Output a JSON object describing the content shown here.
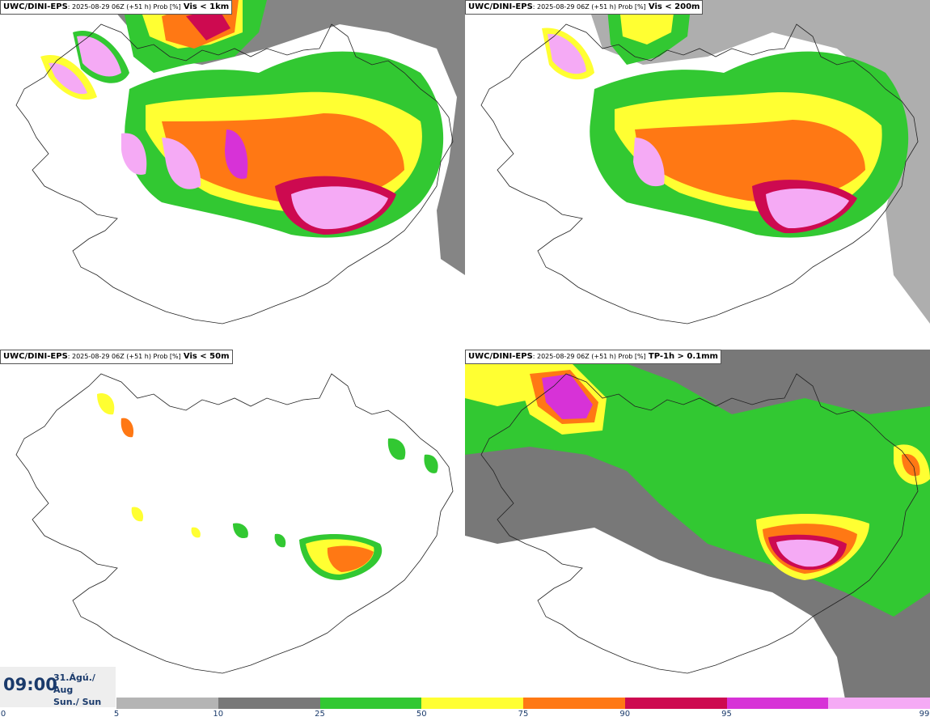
{
  "panels": [
    {
      "model": "UWC/DINI-EPS",
      "meta": ": 2025-08-29 06Z (+51 h) Prob [%]",
      "variable": "Vis < 1km"
    },
    {
      "model": "UWC/DINI-EPS",
      "meta": ": 2025-08-29 06Z (+51 h) Prob [%]",
      "variable": "Vis < 200m"
    },
    {
      "model": "UWC/DINI-EPS",
      "meta": ": 2025-08-29 06Z (+51 h) Prob [%]",
      "variable": "Vis < 50m"
    },
    {
      "model": "UWC/DINI-EPS",
      "meta": ": 2025-08-29 06Z (+51 h) Prob [%]",
      "variable": "TP-1h > 0.1mm"
    }
  ],
  "valid_time": {
    "time": "09:00",
    "date_line1": "31.Ágú./ Aug",
    "date_line2": "Sun./ Sun"
  },
  "colorbar": {
    "colors": [
      "#b4b4b4",
      "#787878",
      "#32c832",
      "#ffff32",
      "#ff7814",
      "#cd0a50",
      "#d732d7",
      "#f5aaf5"
    ],
    "ticks": [
      "0",
      "5",
      "10",
      "25",
      "50",
      "75",
      "90",
      "95",
      "99"
    ]
  }
}
